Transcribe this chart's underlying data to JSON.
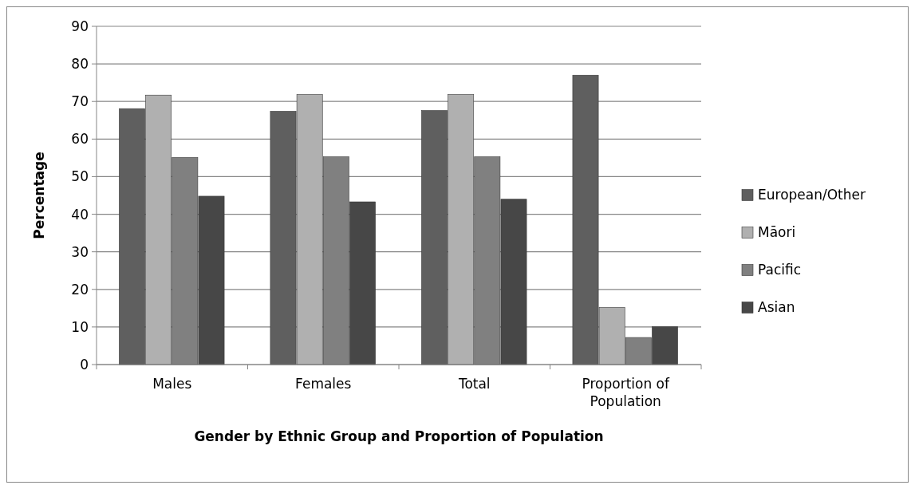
{
  "chart_data": {
    "type": "bar",
    "xlabel": "Gender by Ethnic Group and Proportion of Population",
    "ylabel": "Percentage",
    "categories": [
      "Males",
      "Females",
      "Total",
      "Proportion of Population"
    ],
    "series": [
      {
        "name": "European/Other",
        "color": "#5f5f5f",
        "values": [
          68.1,
          67.4,
          67.6,
          77.0
        ]
      },
      {
        "name": "Māori",
        "color": "#b0b0b0",
        "values": [
          71.7,
          71.9,
          71.9,
          15.2
        ]
      },
      {
        "name": "Pacific",
        "color": "#808080",
        "values": [
          55.1,
          55.3,
          55.3,
          7.2
        ]
      },
      {
        "name": "Asian",
        "color": "#474747",
        "values": [
          44.8,
          43.3,
          44.0,
          10.1
        ]
      }
    ],
    "ylim": [
      0,
      90
    ],
    "yticks": [
      0,
      10,
      20,
      30,
      40,
      50,
      60,
      70,
      80,
      90
    ],
    "grid": "y",
    "legend": "right"
  }
}
